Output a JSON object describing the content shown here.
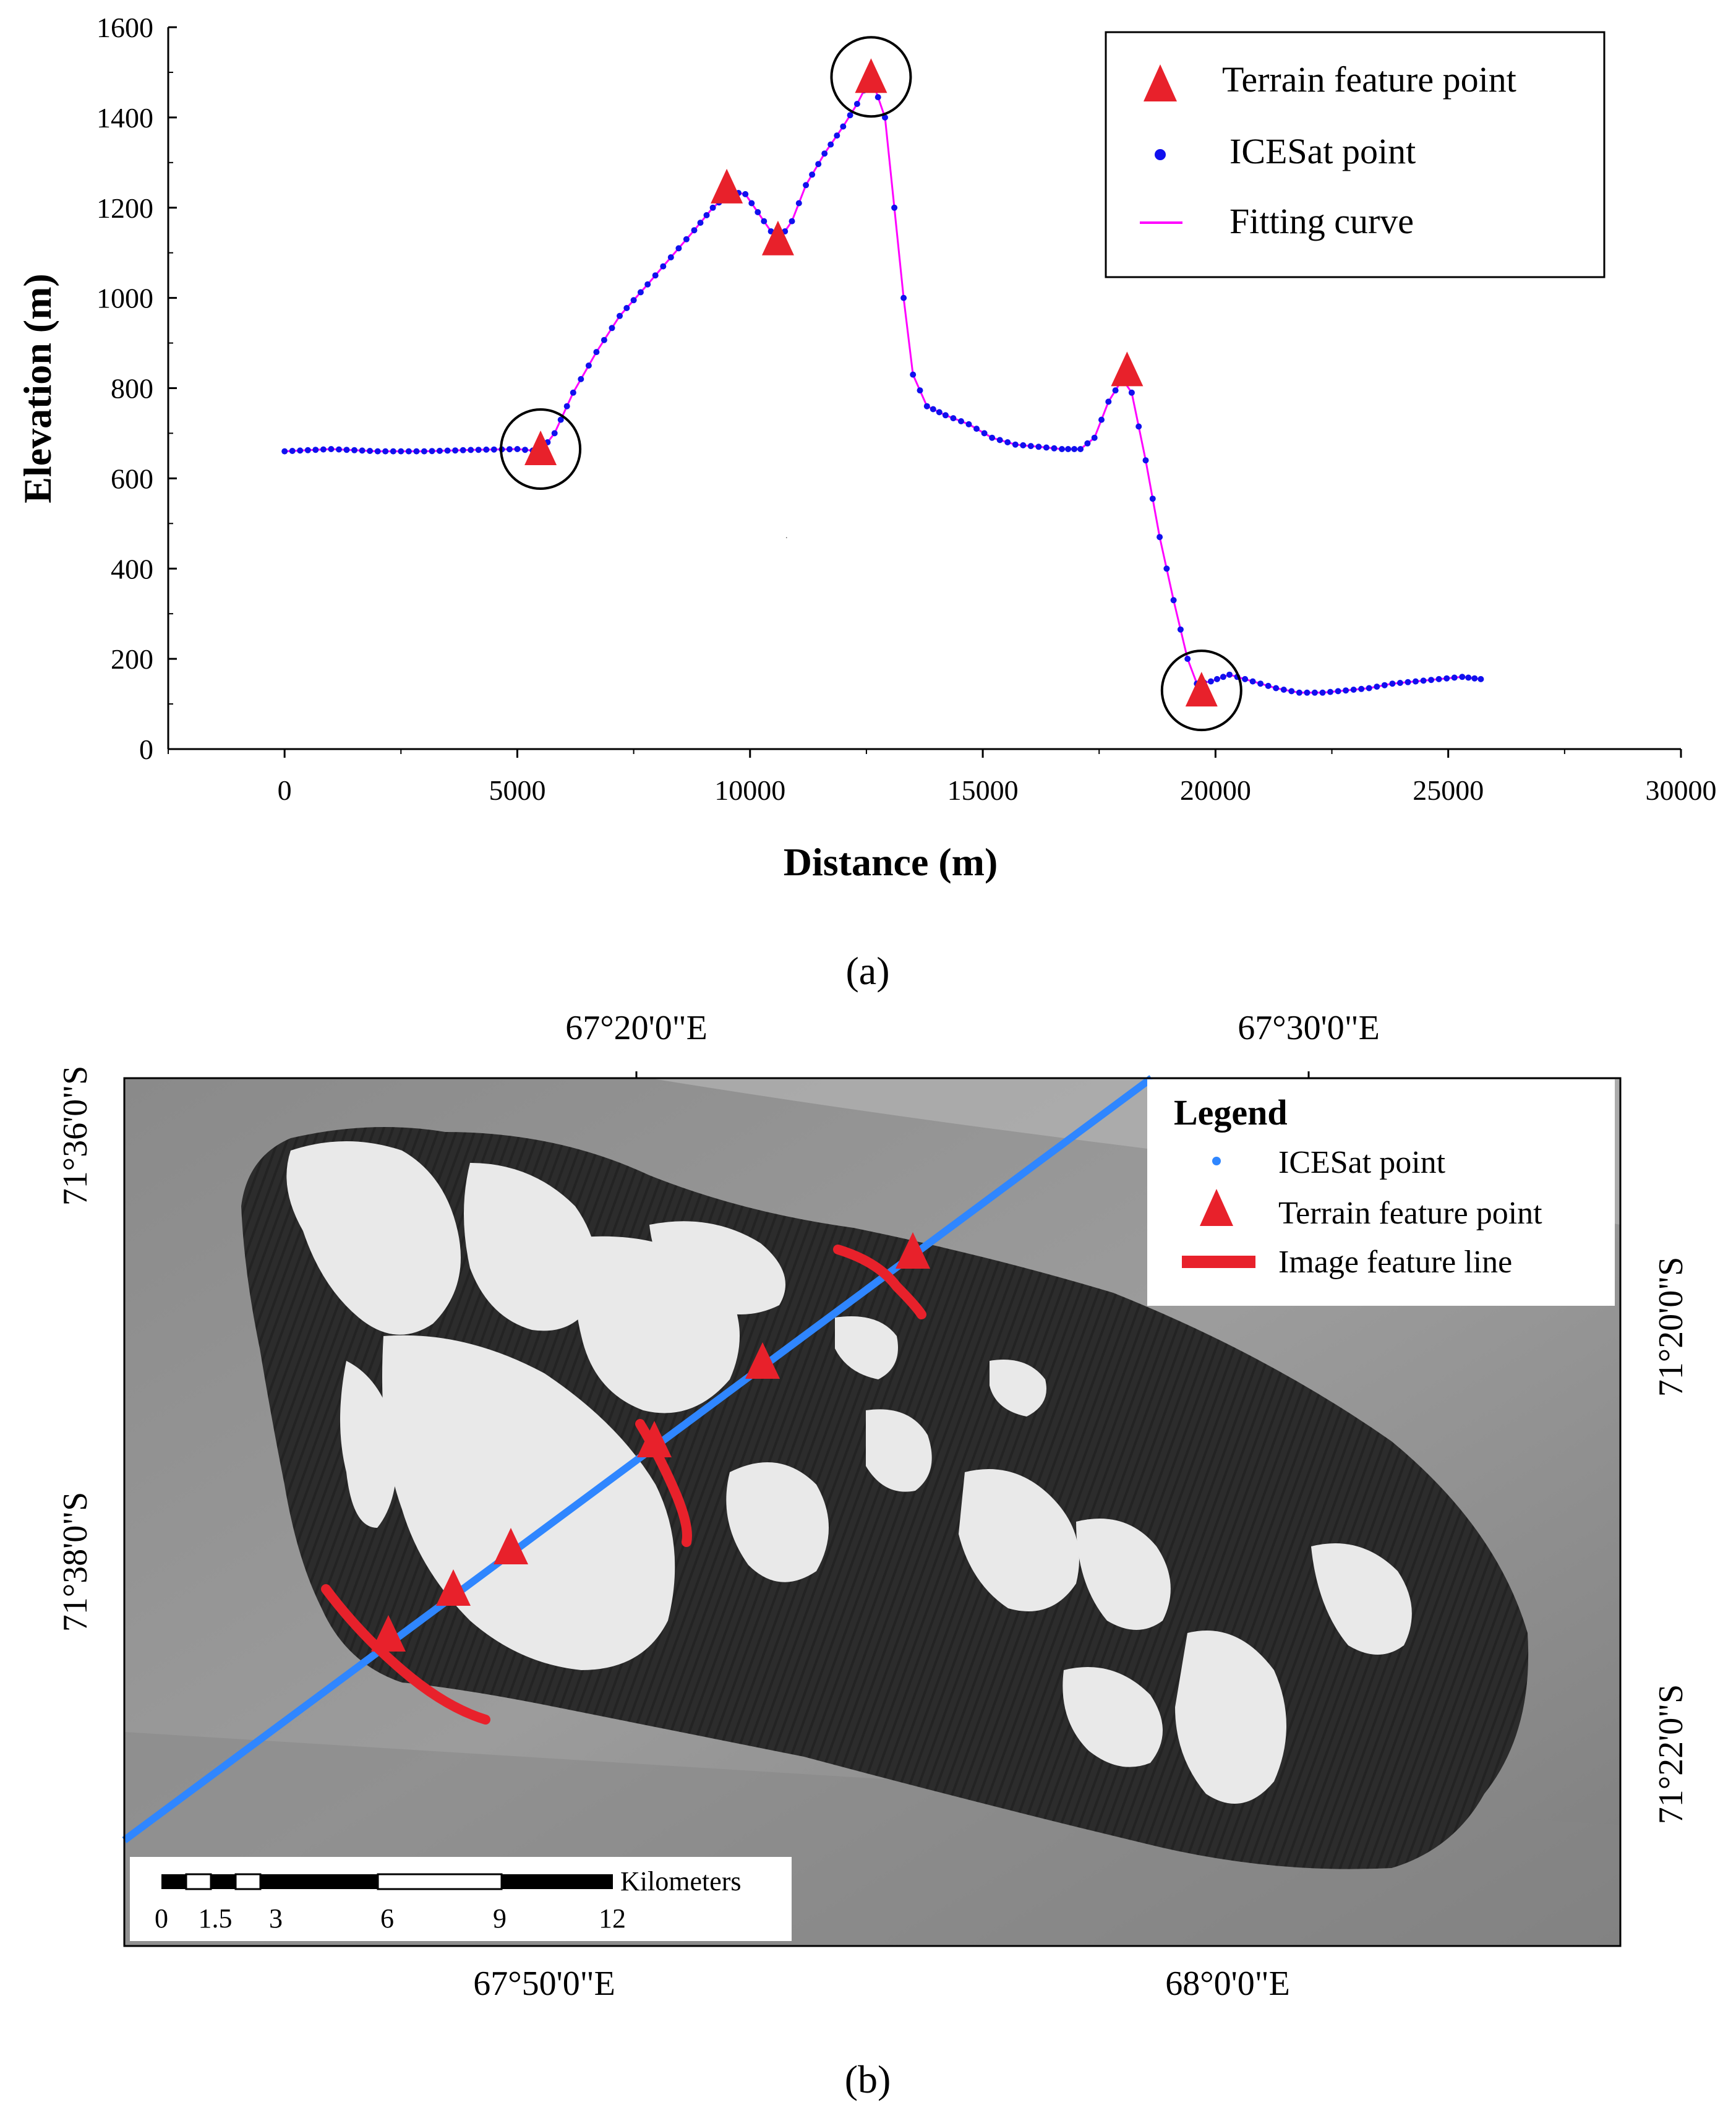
{
  "panel_a_caption": "(a)",
  "panel_b_caption": "(b)",
  "colors": {
    "fit": "#ff00ff",
    "ices": "#1010ee",
    "feature": "#e8212b",
    "circle": "#000000",
    "track": "#2f86ff"
  },
  "chart_data": {
    "type": "line",
    "xlabel": "Distance (m)",
    "ylabel": "Elevation (m)",
    "xlim": [
      -2500,
      30000
    ],
    "ylim": [
      0,
      1600
    ],
    "xticks": [
      0,
      5000,
      10000,
      15000,
      20000,
      25000,
      30000
    ],
    "yticks": [
      0,
      200,
      400,
      600,
      800,
      1000,
      1200,
      1400,
      1600
    ],
    "legend": {
      "placement": "top-right",
      "items": [
        {
          "name": "Terrain feature point",
          "marker": "triangle"
        },
        {
          "name": "ICESat point",
          "marker": "dot"
        },
        {
          "name": "Fitting curve",
          "marker": "line"
        }
      ]
    },
    "profile": [
      [
        0,
        660
      ],
      [
        1000,
        665
      ],
      [
        2000,
        660
      ],
      [
        3000,
        660
      ],
      [
        4000,
        663
      ],
      [
        5000,
        665
      ],
      [
        5500,
        660
      ],
      [
        5800,
        700
      ],
      [
        6200,
        790
      ],
      [
        6700,
        880
      ],
      [
        7200,
        960
      ],
      [
        7800,
        1030
      ],
      [
        8300,
        1090
      ],
      [
        8800,
        1150
      ],
      [
        9200,
        1200
      ],
      [
        9600,
        1235
      ],
      [
        9900,
        1230
      ],
      [
        10300,
        1170
      ],
      [
        10600,
        1125
      ],
      [
        10900,
        1170
      ],
      [
        11200,
        1250
      ],
      [
        11600,
        1320
      ],
      [
        12000,
        1380
      ],
      [
        12300,
        1430
      ],
      [
        12600,
        1490
      ],
      [
        12900,
        1400
      ],
      [
        13100,
        1200
      ],
      [
        13300,
        1000
      ],
      [
        13500,
        830
      ],
      [
        13800,
        760
      ],
      [
        14200,
        740
      ],
      [
        14700,
        720
      ],
      [
        15200,
        690
      ],
      [
        15700,
        675
      ],
      [
        16200,
        670
      ],
      [
        16700,
        665
      ],
      [
        17100,
        665
      ],
      [
        17400,
        690
      ],
      [
        17700,
        770
      ],
      [
        18000,
        820
      ],
      [
        18200,
        790
      ],
      [
        18500,
        640
      ],
      [
        18800,
        470
      ],
      [
        19100,
        330
      ],
      [
        19400,
        200
      ],
      [
        19600,
        145
      ],
      [
        19900,
        150
      ],
      [
        20300,
        165
      ],
      [
        20800,
        150
      ],
      [
        21300,
        135
      ],
      [
        21800,
        125
      ],
      [
        22300,
        125
      ],
      [
        22800,
        130
      ],
      [
        23300,
        135
      ],
      [
        23800,
        145
      ],
      [
        24300,
        150
      ],
      [
        24800,
        155
      ],
      [
        25300,
        160
      ],
      [
        25700,
        155
      ]
    ],
    "feature_points": [
      [
        5500,
        665
      ],
      [
        9500,
        1245
      ],
      [
        10600,
        1130
      ],
      [
        12600,
        1490
      ],
      [
        18100,
        840
      ],
      [
        19700,
        130
      ]
    ],
    "circled_points": [
      [
        5500,
        665
      ],
      [
        12600,
        1490
      ],
      [
        19700,
        130
      ]
    ]
  },
  "map": {
    "top_ticks": [
      "67°20'0\"E",
      "67°30'0\"E"
    ],
    "bottom_ticks": [
      "67°50'0\"E",
      "68°0'0\"E"
    ],
    "left_ticks": [
      "71°36'0\"S",
      "71°38'0\"S"
    ],
    "right_ticks": [
      "71°20'0\"S",
      "71°22'0\"S"
    ],
    "legend": {
      "title": "Legend",
      "items": [
        "ICESat point",
        "Terrain feature point",
        "Image feature line"
      ]
    },
    "scale_bar": {
      "unit": "Kilometers",
      "labels": [
        "0",
        "1.5",
        "3",
        "6",
        "9",
        "12"
      ]
    }
  }
}
